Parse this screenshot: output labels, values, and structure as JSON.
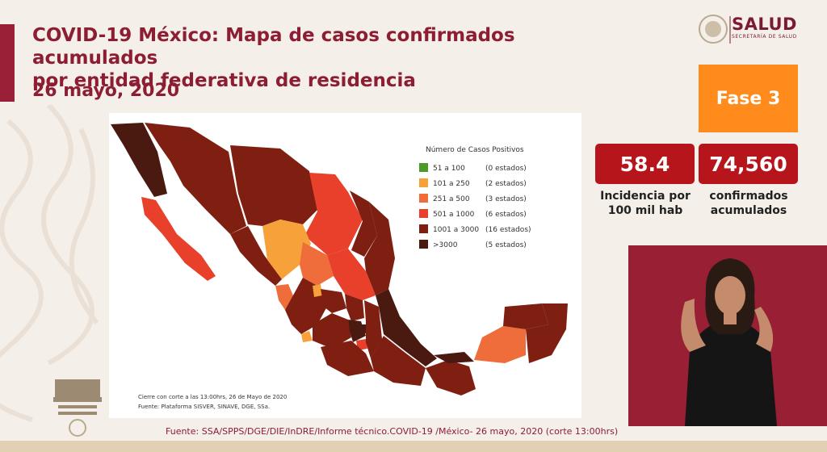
{
  "header": {
    "title_line1": "COVID-19 México: Mapa de casos confirmados acumulados",
    "title_line2": "por entidad federativa de residencia",
    "date": "26 mayo, 2020"
  },
  "logo": {
    "name": "SALUD",
    "subtitle": "SECRETARÍA DE SALUD",
    "icon": "government-seal-icon"
  },
  "phase": {
    "label": "Fase 3",
    "color": "#ff8b1d"
  },
  "stats": {
    "incidence_value": "58.4",
    "incidence_label_line1": "Incidencia por",
    "incidence_label_line2": "100 mil hab",
    "confirmed_value": "74,560",
    "confirmed_label_line1": "confirmados",
    "confirmed_label_line2": "acumulados"
  },
  "legend": {
    "title": "Número de Casos Positivos",
    "items": [
      {
        "range": "51 a 100",
        "count": "(0 estados)",
        "color": "#4c9a2a"
      },
      {
        "range": "101 a 250",
        "count": "(2 estados)",
        "color": "#f6a13a"
      },
      {
        "range": "251 a 500",
        "count": "(3 estados)",
        "color": "#ef6d3a"
      },
      {
        "range": "501 a 1000",
        "count": "(6 estados)",
        "color": "#e8402a"
      },
      {
        "range": "1001 a 3000",
        "count": "(16 estados)",
        "color": "#7e1f12"
      },
      {
        "range": ">3000",
        "count": "(5 estados)",
        "color": "#4a1a10"
      }
    ]
  },
  "notes": {
    "cutoff": "Cierre con corte a las 13:00hrs, 26 de Mayo de 2020",
    "platform": "Fuente: Plataforma SISVER, SINAVE, DGE, SSa."
  },
  "source": "Fuente: SSA/SPPS/DGE/DIE/InDRE/Informe técnico.COVID-19 /México- 26 mayo, 2020 (corte 13:00hrs)"
}
